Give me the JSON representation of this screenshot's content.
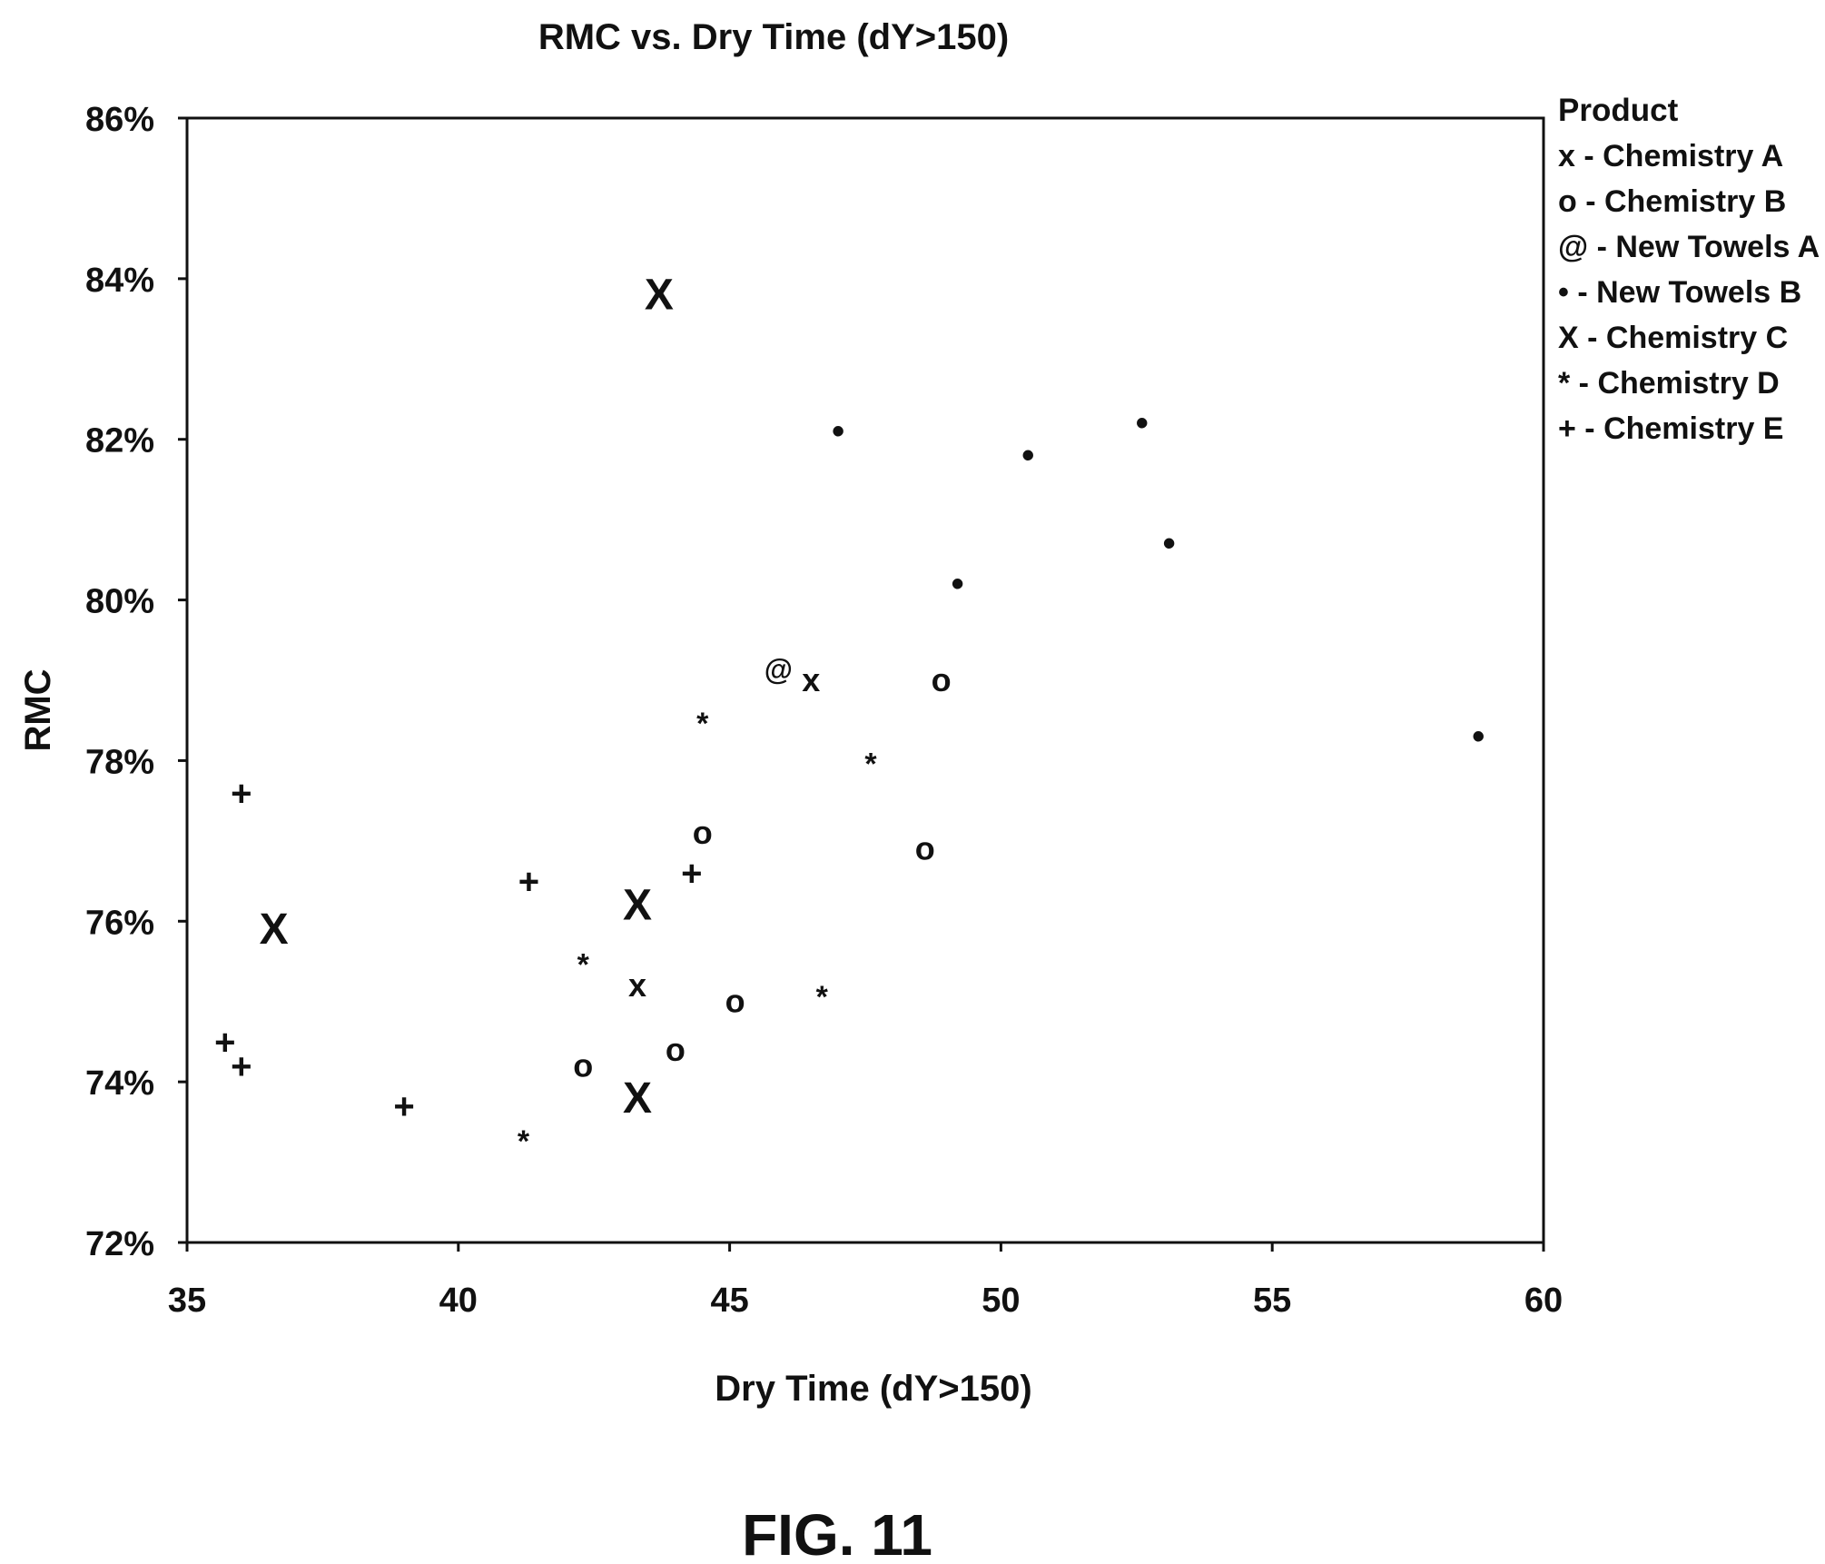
{
  "chart_data": {
    "type": "scatter",
    "title": "RMC vs. Dry Time (dY>150)",
    "xlabel": "Dry Time (dY>150)",
    "ylabel": "RMC",
    "xlim": [
      35,
      60
    ],
    "ylim": [
      0.72,
      0.86
    ],
    "x_ticks": [
      35,
      40,
      45,
      50,
      55,
      60
    ],
    "x_tick_labels": [
      "35",
      "40",
      "45",
      "50",
      "55",
      "60"
    ],
    "y_ticks": [
      0.72,
      0.74,
      0.76,
      0.78,
      0.8,
      0.82,
      0.84,
      0.86
    ],
    "y_tick_labels": [
      "72%",
      "74%",
      "76%",
      "78%",
      "80%",
      "82%",
      "84%",
      "86%"
    ],
    "grid": false,
    "legend": {
      "title": "Product",
      "position": "right",
      "entries": [
        "x - Chemistry A",
        "o - Chemistry B",
        "@ - New Towels A",
        "• - New Towels B",
        "X - Chemistry C",
        "* - Chemistry D",
        "+ - Chemistry E"
      ]
    },
    "series": [
      {
        "name": "Chemistry A",
        "marker": "x",
        "points": [
          [
            46.5,
            0.79
          ],
          [
            43.3,
            0.752
          ]
        ]
      },
      {
        "name": "Chemistry B",
        "marker": "o",
        "points": [
          [
            48.9,
            0.79
          ],
          [
            44.5,
            0.771
          ],
          [
            48.6,
            0.769
          ],
          [
            45.1,
            0.75
          ],
          [
            44.0,
            0.744
          ],
          [
            42.3,
            0.742
          ]
        ]
      },
      {
        "name": "New Towels A",
        "marker": "@",
        "points": [
          [
            45.9,
            0.791
          ]
        ]
      },
      {
        "name": "New Towels B",
        "marker": "•",
        "points": [
          [
            52.6,
            0.822
          ],
          [
            47.0,
            0.821
          ],
          [
            50.5,
            0.818
          ],
          [
            53.1,
            0.807
          ],
          [
            49.2,
            0.802
          ],
          [
            58.8,
            0.783
          ]
        ]
      },
      {
        "name": "Chemistry C",
        "marker": "X",
        "points": [
          [
            43.7,
            0.838
          ],
          [
            43.3,
            0.762
          ],
          [
            36.6,
            0.759
          ],
          [
            43.3,
            0.738
          ]
        ]
      },
      {
        "name": "Chemistry D",
        "marker": "*",
        "points": [
          [
            44.5,
            0.785
          ],
          [
            47.6,
            0.78
          ],
          [
            42.3,
            0.755
          ],
          [
            46.7,
            0.751
          ],
          [
            41.2,
            0.733
          ]
        ]
      },
      {
        "name": "Chemistry E",
        "marker": "+",
        "points": [
          [
            36.0,
            0.776
          ],
          [
            41.3,
            0.765
          ],
          [
            44.3,
            0.766
          ],
          [
            35.7,
            0.745
          ],
          [
            36.0,
            0.742
          ],
          [
            39.0,
            0.737
          ]
        ]
      }
    ]
  },
  "figure_label": "FIG. 11"
}
